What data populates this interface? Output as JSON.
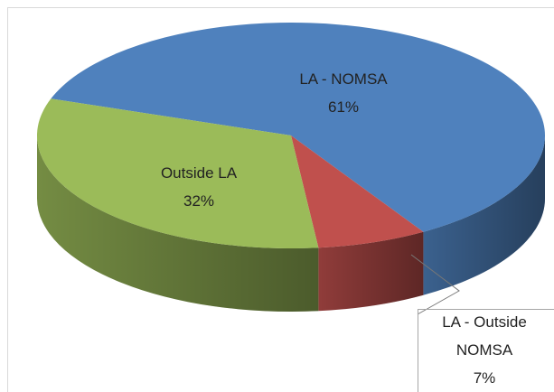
{
  "chart_data": {
    "type": "pie",
    "categories": [
      "LA - NOMSA",
      "LA - Outside NOMSA",
      "Outside LA"
    ],
    "values": [
      61,
      7,
      32
    ],
    "value_labels": [
      "61%",
      "7%",
      "32%"
    ],
    "colors": [
      "#4f81bd",
      "#c0504d",
      "#9bbb59"
    ]
  }
}
